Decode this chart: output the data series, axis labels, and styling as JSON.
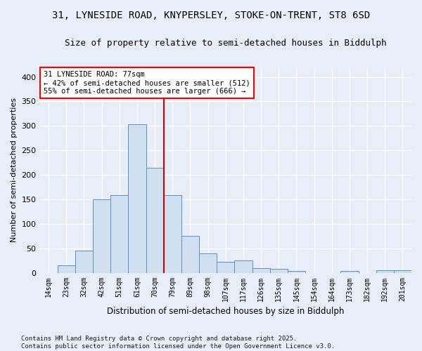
{
  "title1": "31, LYNESIDE ROAD, KNYPERSLEY, STOKE-ON-TRENT, ST8 6SD",
  "title2": "Size of property relative to semi-detached houses in Biddulph",
  "xlabel": "Distribution of semi-detached houses by size in Biddulph",
  "ylabel": "Number of semi-detached properties",
  "categories": [
    "14sqm",
    "23sqm",
    "32sqm",
    "42sqm",
    "51sqm",
    "61sqm",
    "70sqm",
    "79sqm",
    "89sqm",
    "98sqm",
    "107sqm",
    "117sqm",
    "126sqm",
    "135sqm",
    "145sqm",
    "154sqm",
    "164sqm",
    "173sqm",
    "182sqm",
    "192sqm",
    "201sqm"
  ],
  "values": [
    0,
    15,
    45,
    150,
    158,
    303,
    215,
    158,
    75,
    40,
    23,
    25,
    10,
    8,
    4,
    0,
    0,
    4,
    0,
    5,
    5
  ],
  "bar_color": "#d0e0f0",
  "bar_edge_color": "#6090c0",
  "annotation_text": "31 LYNESIDE ROAD: 77sqm\n← 42% of semi-detached houses are smaller (512)\n55% of semi-detached houses are larger (666) →",
  "vline_color": "#cc0000",
  "background_color": "#e8eef8",
  "plot_bg_color": "#e8eef8",
  "footer": "Contains HM Land Registry data © Crown copyright and database right 2025.\nContains public sector information licensed under the Open Government Licence v3.0.",
  "ylim": [
    0,
    420
  ],
  "yticks": [
    0,
    50,
    100,
    150,
    200,
    250,
    300,
    350,
    400
  ],
  "title1_fontsize": 10,
  "title2_fontsize": 9,
  "annot_fontsize": 7.5,
  "footer_fontsize": 6.5
}
